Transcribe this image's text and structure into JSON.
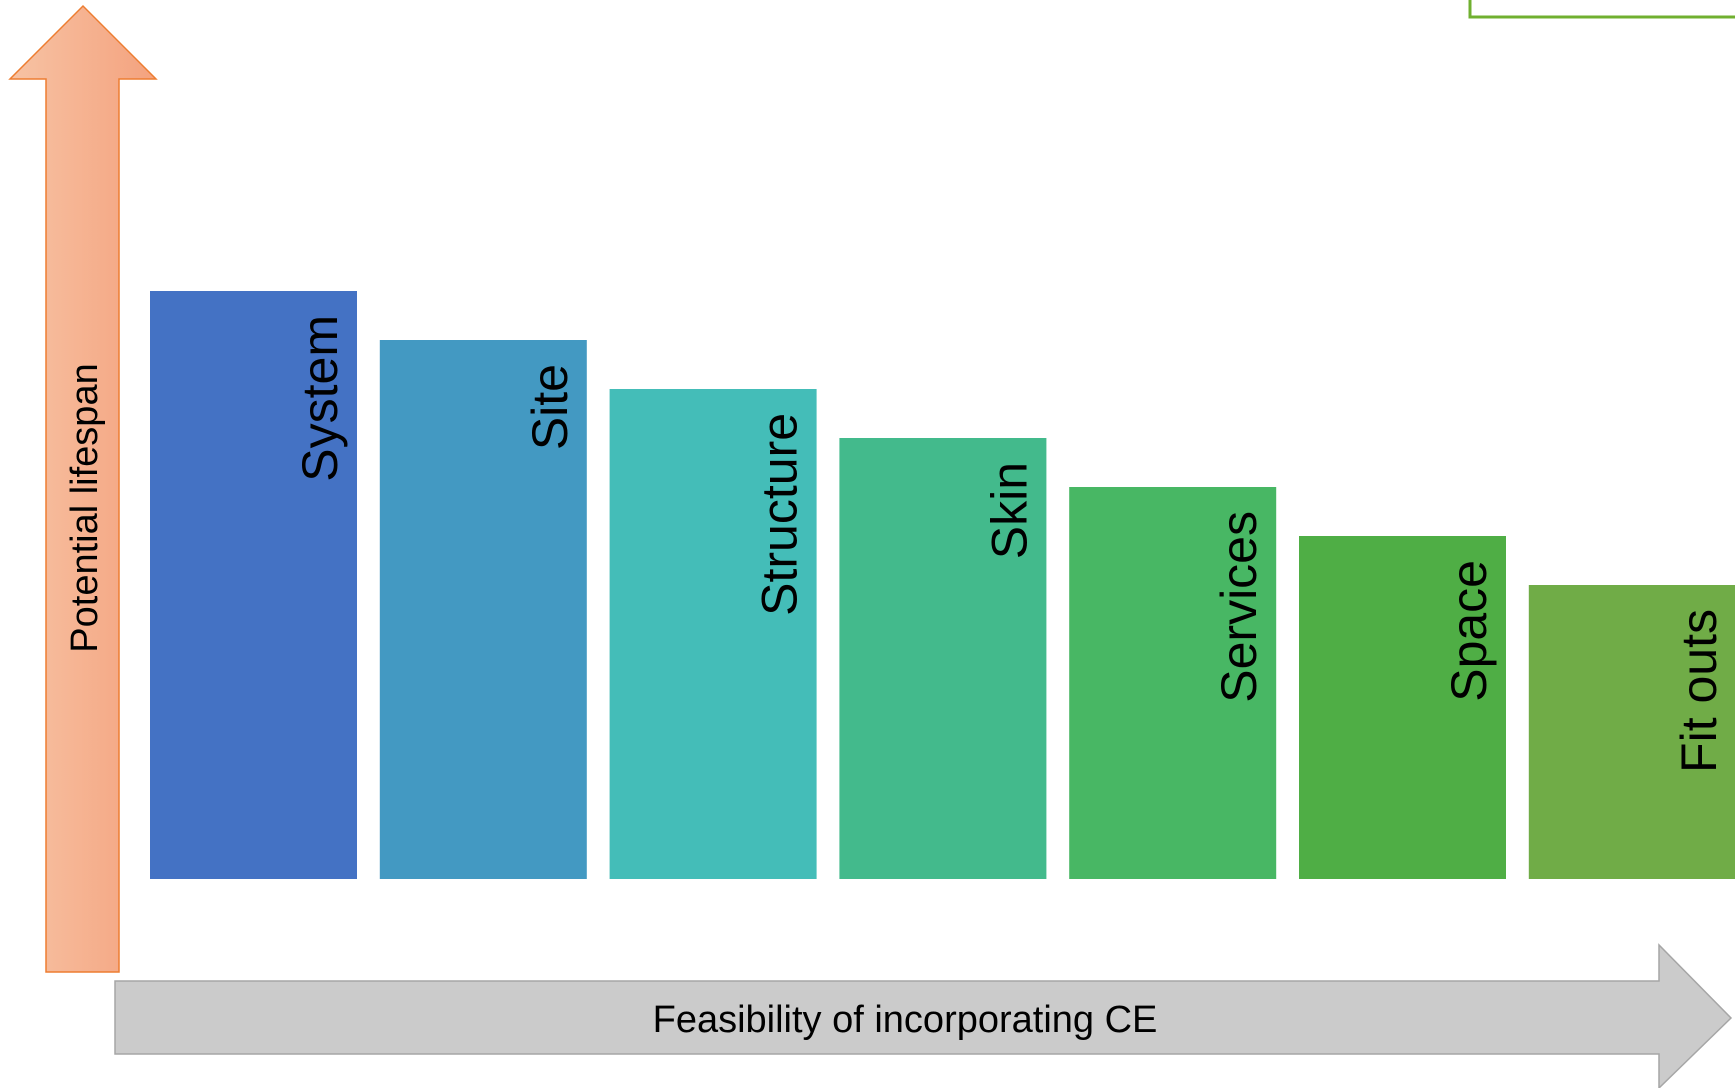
{
  "axes": {
    "vertical_label": "Potential lifespan",
    "horizontal_label": "Feasibility of incorporating CE"
  },
  "colors": {
    "vertical_arrow_start": "#f4a27e",
    "vertical_arrow_end": "#f7c3a4",
    "vertical_arrow_border": "#ed7d31",
    "horizontal_arrow_fill": "#cbcbcb",
    "horizontal_arrow_border": "#a6a6a6",
    "corner_box_border": "#70b030"
  },
  "bars": [
    {
      "label": "System",
      "color": "#4472c4"
    },
    {
      "label": "Site",
      "color": "#4399c2"
    },
    {
      "label": "Structure",
      "color": "#44bdb8"
    },
    {
      "label": "Skin",
      "color": "#43ba8c"
    },
    {
      "label": "Services",
      "color": "#48b764"
    },
    {
      "label": "Space",
      "color": "#4fae45"
    },
    {
      "label": "Fit outs",
      "color": "#70ac47"
    }
  ]
}
